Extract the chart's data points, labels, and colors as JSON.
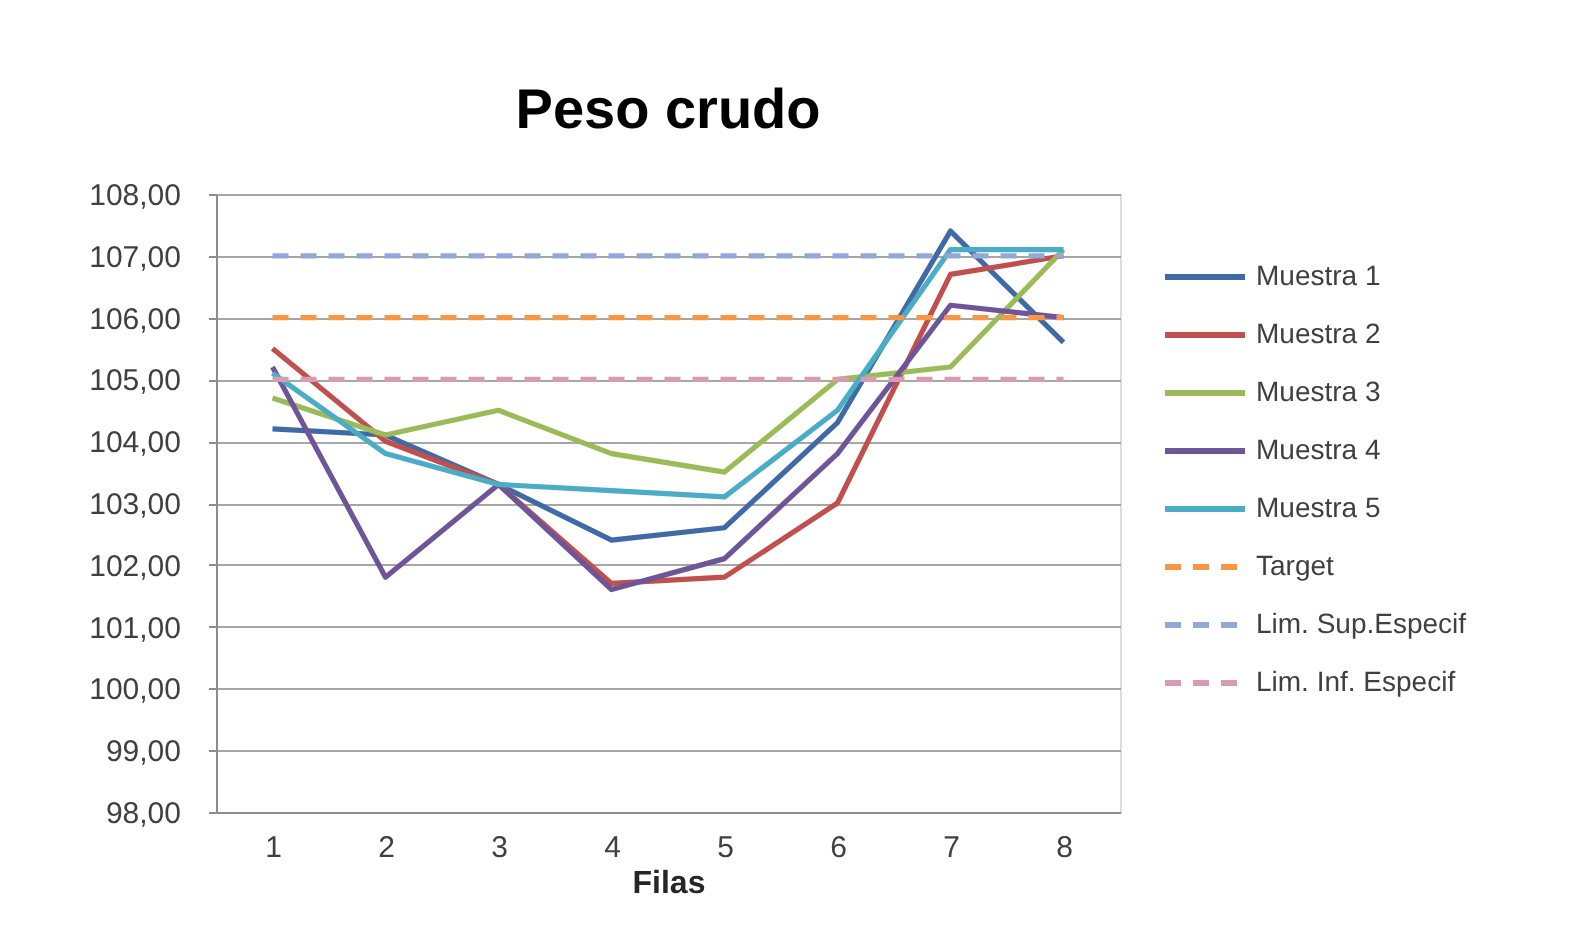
{
  "chart_data": {
    "type": "line",
    "title": "Peso crudo",
    "xlabel": "Filas",
    "categories": [
      "1",
      "2",
      "3",
      "4",
      "5",
      "6",
      "7",
      "8"
    ],
    "series": [
      {
        "name": "Muestra 1",
        "color": "#3f6aa6",
        "values": [
          104.2,
          104.1,
          103.3,
          102.4,
          102.6,
          104.3,
          107.4,
          105.6
        ]
      },
      {
        "name": "Muestra 2",
        "color": "#c0504d",
        "values": [
          105.5,
          104.0,
          103.3,
          101.7,
          101.8,
          103.0,
          106.7,
          107.0
        ]
      },
      {
        "name": "Muestra 3",
        "color": "#9bbb59",
        "values": [
          104.7,
          104.1,
          104.5,
          103.8,
          103.5,
          105.0,
          105.2,
          107.1
        ]
      },
      {
        "name": "Muestra 4",
        "color": "#6e5597",
        "values": [
          105.2,
          101.8,
          103.3,
          101.6,
          102.1,
          103.8,
          106.2,
          106.0
        ]
      },
      {
        "name": "Muestra 5",
        "color": "#4bacc6",
        "values": [
          105.1,
          103.8,
          103.3,
          103.2,
          103.1,
          104.5,
          107.1,
          107.1
        ]
      }
    ],
    "ref_lines": [
      {
        "axis": "y",
        "value": 106,
        "label": "Target",
        "color": "#f79646",
        "line_style": "dashed"
      },
      {
        "axis": "y",
        "value": 107,
        "label": "Lim. Sup.Especif",
        "color": "#94a8d8",
        "line_style": "dashed"
      },
      {
        "axis": "y",
        "value": 105,
        "label": "Lim. Inf. Especif",
        "color": "#d79cb2",
        "line_style": "dashed"
      }
    ],
    "ylim": [
      98,
      108
    ],
    "yticks": [
      {
        "value": 98,
        "label": "98,00"
      },
      {
        "value": 99,
        "label": "99,00"
      },
      {
        "value": 100,
        "label": "100,00"
      },
      {
        "value": 101,
        "label": "101,00"
      },
      {
        "value": 102,
        "label": "102,00"
      },
      {
        "value": 103,
        "label": "103,00"
      },
      {
        "value": 104,
        "label": "104,00"
      },
      {
        "value": 105,
        "label": "105,00"
      },
      {
        "value": 106,
        "label": "106,00"
      },
      {
        "value": 107,
        "label": "107,00"
      },
      {
        "value": 108,
        "label": "108,00"
      }
    ],
    "grid": "y",
    "legend": "right",
    "marker": "none",
    "line_style": "solid"
  }
}
